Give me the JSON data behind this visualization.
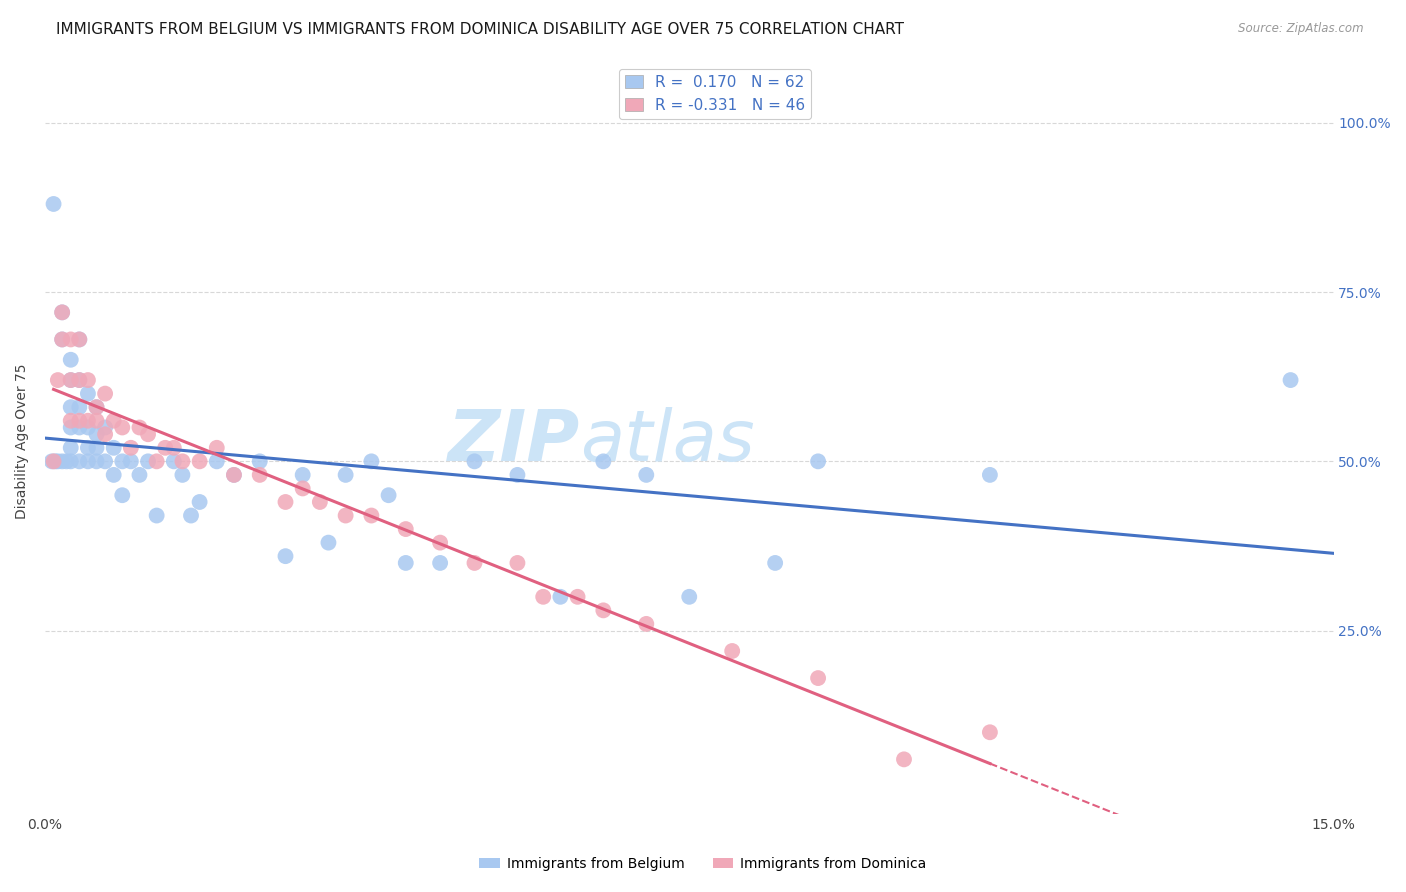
{
  "title": "IMMIGRANTS FROM BELGIUM VS IMMIGRANTS FROM DOMINICA DISABILITY AGE OVER 75 CORRELATION CHART",
  "source": "Source: ZipAtlas.com",
  "ylabel": "Disability Age Over 75",
  "xlim": [
    0.0,
    0.15
  ],
  "ylim": [
    -0.02,
    1.08
  ],
  "yticks": [
    0.0,
    0.25,
    0.5,
    0.75,
    1.0
  ],
  "ytick_labels_right": [
    "",
    "25.0%",
    "50.0%",
    "75.0%",
    "100.0%"
  ],
  "xticks": [
    0.0,
    0.03,
    0.06,
    0.09,
    0.12,
    0.15
  ],
  "xtick_labels": [
    "0.0%",
    "",
    "",
    "",
    "",
    "15.0%"
  ],
  "belgium_R": 0.17,
  "belgium_N": 62,
  "dominica_R": -0.331,
  "dominica_N": 46,
  "belgium_color": "#a8c8f0",
  "dominica_color": "#f0a8b8",
  "belgium_line_color": "#4472c4",
  "dominica_line_color": "#e06080",
  "watermark_color": "#cce4f7",
  "background_color": "#ffffff",
  "belgium_x": [
    0.0008,
    0.001,
    0.0012,
    0.0015,
    0.002,
    0.002,
    0.002,
    0.0025,
    0.003,
    0.003,
    0.003,
    0.003,
    0.003,
    0.003,
    0.004,
    0.004,
    0.004,
    0.004,
    0.004,
    0.005,
    0.005,
    0.005,
    0.005,
    0.006,
    0.006,
    0.006,
    0.006,
    0.007,
    0.007,
    0.008,
    0.008,
    0.009,
    0.009,
    0.01,
    0.011,
    0.012,
    0.013,
    0.015,
    0.016,
    0.017,
    0.018,
    0.02,
    0.022,
    0.025,
    0.028,
    0.03,
    0.033,
    0.035,
    0.038,
    0.04,
    0.042,
    0.046,
    0.05,
    0.055,
    0.06,
    0.065,
    0.07,
    0.075,
    0.085,
    0.09,
    0.11,
    0.145
  ],
  "belgium_y": [
    0.5,
    0.88,
    0.5,
    0.5,
    0.5,
    0.68,
    0.72,
    0.5,
    0.65,
    0.62,
    0.58,
    0.55,
    0.52,
    0.5,
    0.68,
    0.62,
    0.58,
    0.55,
    0.5,
    0.6,
    0.55,
    0.52,
    0.5,
    0.58,
    0.54,
    0.52,
    0.5,
    0.55,
    0.5,
    0.52,
    0.48,
    0.5,
    0.45,
    0.5,
    0.48,
    0.5,
    0.42,
    0.5,
    0.48,
    0.42,
    0.44,
    0.5,
    0.48,
    0.5,
    0.36,
    0.48,
    0.38,
    0.48,
    0.5,
    0.45,
    0.35,
    0.35,
    0.5,
    0.48,
    0.3,
    0.5,
    0.48,
    0.3,
    0.35,
    0.5,
    0.48,
    0.62
  ],
  "dominica_x": [
    0.001,
    0.0015,
    0.002,
    0.002,
    0.003,
    0.003,
    0.003,
    0.004,
    0.004,
    0.004,
    0.005,
    0.005,
    0.006,
    0.006,
    0.007,
    0.007,
    0.008,
    0.009,
    0.01,
    0.011,
    0.012,
    0.013,
    0.014,
    0.015,
    0.016,
    0.018,
    0.02,
    0.022,
    0.025,
    0.028,
    0.03,
    0.032,
    0.035,
    0.038,
    0.042,
    0.046,
    0.05,
    0.055,
    0.058,
    0.062,
    0.065,
    0.07,
    0.08,
    0.09,
    0.1,
    0.11
  ],
  "dominica_y": [
    0.5,
    0.62,
    0.68,
    0.72,
    0.62,
    0.68,
    0.56,
    0.62,
    0.56,
    0.68,
    0.56,
    0.62,
    0.58,
    0.56,
    0.6,
    0.54,
    0.56,
    0.55,
    0.52,
    0.55,
    0.54,
    0.5,
    0.52,
    0.52,
    0.5,
    0.5,
    0.52,
    0.48,
    0.48,
    0.44,
    0.46,
    0.44,
    0.42,
    0.42,
    0.4,
    0.38,
    0.35,
    0.35,
    0.3,
    0.3,
    0.28,
    0.26,
    0.22,
    0.18,
    0.06,
    0.1
  ],
  "grid_color": "#d8d8d8",
  "title_fontsize": 11,
  "axis_label_fontsize": 10,
  "tick_fontsize": 10
}
